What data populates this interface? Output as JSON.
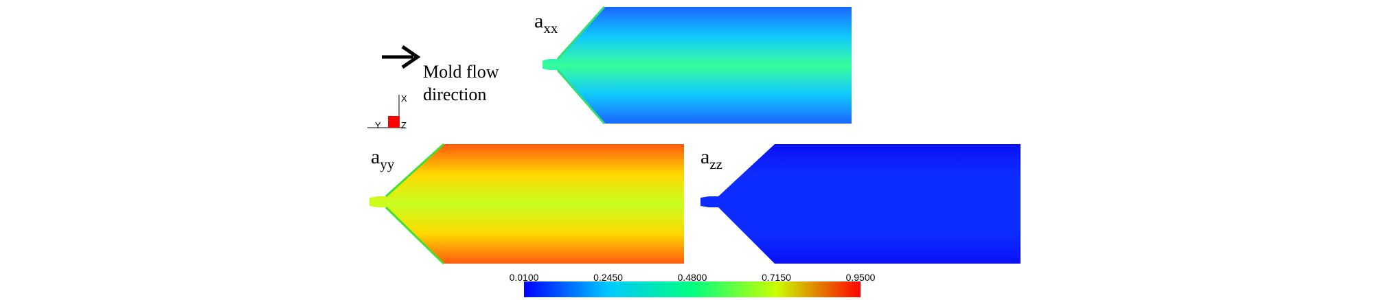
{
  "panels": [
    {
      "id": "axx",
      "base": "a",
      "subscript": "xx",
      "fill": [
        "#1a66ff",
        "#10c8ff",
        "#35ff9a",
        "#10c8ff",
        "#1a66ff"
      ]
    },
    {
      "id": "ayy",
      "base": "a",
      "subscript": "yy",
      "fill": [
        "#ff5a10",
        "#ffd800",
        "#c8ff20",
        "#ffd800",
        "#ff5a10"
      ]
    },
    {
      "id": "azz",
      "base": "a",
      "subscript": "zz",
      "fill": [
        "#0a10f5",
        "#0d2cff",
        "#0d2cff",
        "#0d2cff",
        "#0a10f5"
      ]
    }
  ],
  "flow_label": {
    "line1": "Mold flow",
    "line2": "direction"
  },
  "triad": {
    "x": "X",
    "y": "Y",
    "z": "Z"
  },
  "colorbar": {
    "ticks": [
      "0.0100",
      "0.2450",
      "0.4800",
      "0.7150",
      "0.9500"
    ],
    "colors": [
      "#0000ff",
      "#00c8ff",
      "#00ff80",
      "#c8ff00",
      "#ff0000"
    ]
  }
}
